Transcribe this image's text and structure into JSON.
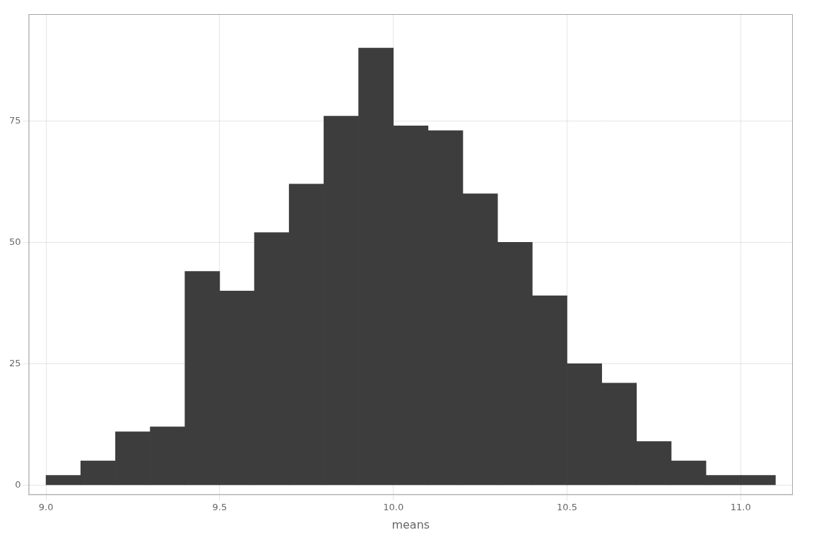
{
  "chart_data": {
    "type": "histogram",
    "xlabel": "means",
    "bins": [
      9.0,
      9.1,
      9.2,
      9.3,
      9.4,
      9.5,
      9.6,
      9.7,
      9.8,
      9.9,
      10.0,
      10.1,
      10.2,
      10.3,
      10.4,
      10.5,
      10.6,
      10.7,
      10.8,
      10.9,
      11.0,
      11.1
    ],
    "values": [
      2,
      5,
      11,
      12,
      44,
      40,
      52,
      62,
      76,
      90,
      74,
      73,
      60,
      50,
      39,
      25,
      21,
      9,
      5,
      2,
      2
    ],
    "color": "#3d3d3d",
    "xlim": [
      8.95,
      11.15
    ],
    "ylim": [
      -2,
      97
    ],
    "xticks": [
      {
        "value": 9.0,
        "label": "9.0"
      },
      9.5,
      {
        "value": 10.0,
        "label": "10.0"
      },
      10.5,
      {
        "value": 11.0,
        "label": "11.0"
      }
    ],
    "yticks": [
      0,
      25,
      50,
      75
    ],
    "grid": true
  }
}
